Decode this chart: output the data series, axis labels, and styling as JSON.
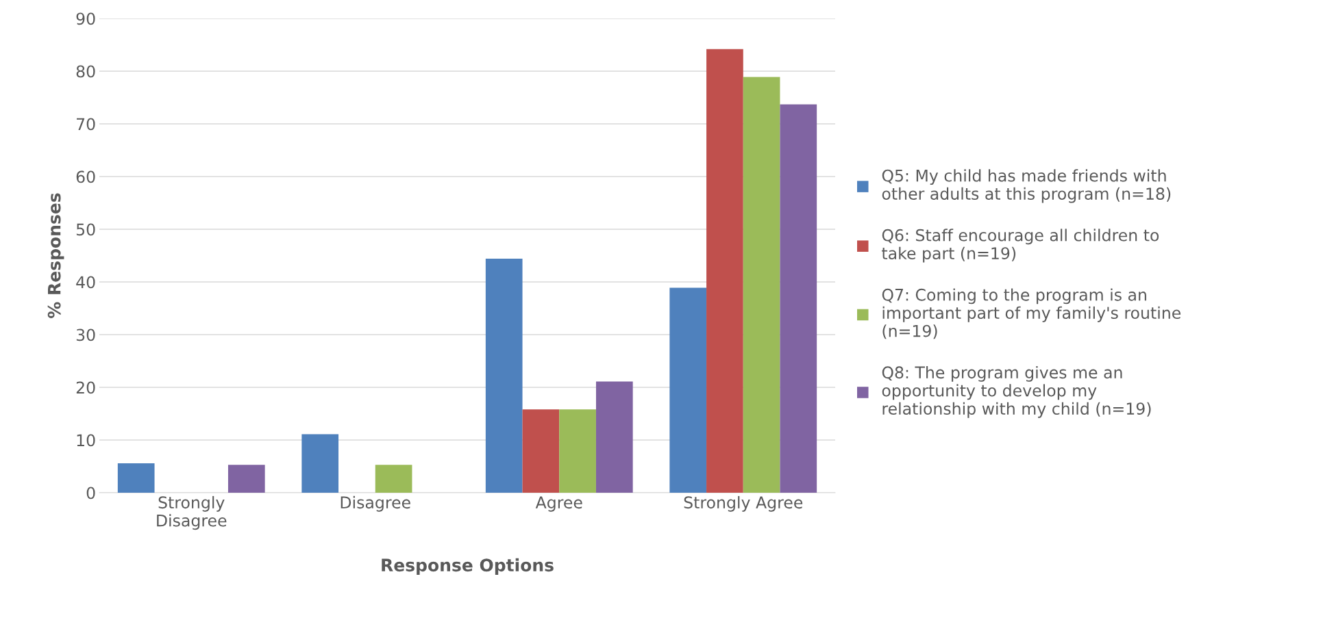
{
  "chart_data": {
    "type": "bar",
    "xlabel": "Response Options",
    "ylabel": "% Responses",
    "categories": [
      "Strongly\nDisagree",
      "Disagree",
      "Agree",
      "Strongly Agree"
    ],
    "series": [
      {
        "name": "Q5: My child has made friends with\nother adults at this program (n=18)",
        "color": "#4f81bd",
        "values": [
          5.6,
          11.1,
          44.4,
          38.9
        ]
      },
      {
        "name": "Q6: Staff encourage all children to\ntake part (n=19)",
        "color": "#c0504d",
        "values": [
          0,
          0,
          15.8,
          84.2
        ]
      },
      {
        "name": "Q7: Coming to the program is an\nimportant part of my family's routine\n(n=19)",
        "color": "#9bbb59",
        "values": [
          0,
          5.3,
          15.8,
          78.9
        ]
      },
      {
        "name": "Q8: The program gives me an\nopportunity to develop my\nrelationship with my child (n=19)",
        "color": "#8064a2",
        "values": [
          5.3,
          0,
          21.1,
          73.7
        ]
      }
    ],
    "ylim": [
      0,
      90
    ],
    "yticks": [
      0,
      10,
      20,
      30,
      40,
      50,
      60,
      70,
      80,
      90
    ],
    "grid": "y",
    "legend": "right"
  }
}
